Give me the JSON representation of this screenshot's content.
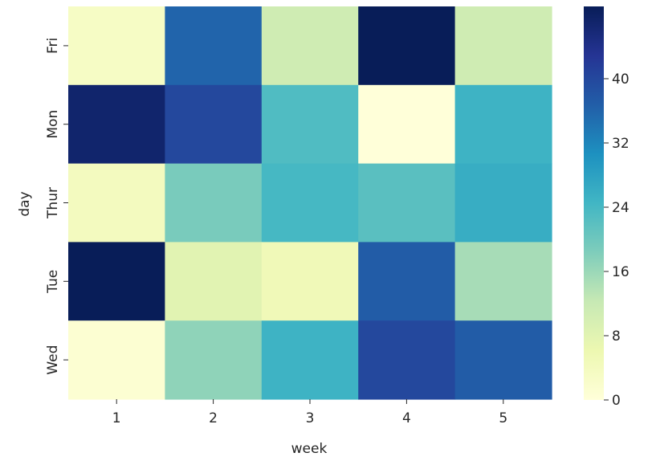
{
  "chart_data": {
    "type": "heatmap",
    "title": "",
    "xlabel": "week",
    "ylabel": "day",
    "x_categories": [
      "1",
      "2",
      "3",
      "4",
      "5"
    ],
    "y_categories": [
      "Fri",
      "Mon",
      "Thur",
      "Tue",
      "Wed"
    ],
    "values": [
      [
        3,
        36,
        11,
        49,
        11
      ],
      [
        47,
        40,
        23,
        0,
        25
      ],
      [
        4,
        19,
        24,
        22,
        26
      ],
      [
        49,
        8,
        5,
        37,
        15
      ],
      [
        1,
        17,
        25,
        40,
        37
      ]
    ],
    "colorbar": {
      "min": 0,
      "max": 49,
      "ticks": [
        0,
        8,
        16,
        24,
        32,
        40
      ],
      "colormap": "YlGnBu",
      "stops": [
        "#ffffd9",
        "#edf8b1",
        "#c7e9b4",
        "#7fcdbb",
        "#41b6c4",
        "#1d91c0",
        "#225ea8",
        "#253494",
        "#081d58"
      ]
    }
  }
}
